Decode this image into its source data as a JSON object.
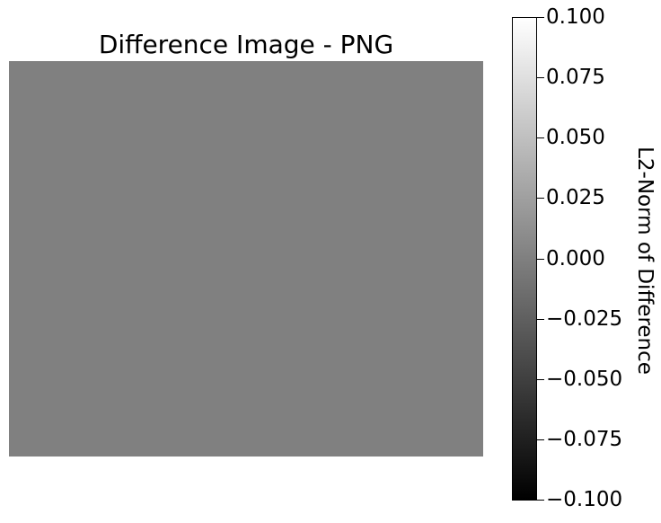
{
  "chart_data": {
    "type": "heatmap",
    "title": "Difference Image - PNG",
    "values": [
      [
        0.0
      ]
    ],
    "colormap": [
      "#000000",
      "#ffffff"
    ],
    "colorbar": {
      "label": "L2-Norm of Difference",
      "range": [
        -0.1,
        0.1
      ],
      "ticks": [
        0.1,
        0.075,
        0.05,
        0.025,
        0.0,
        -0.025,
        -0.05,
        -0.075,
        -0.1
      ],
      "tick_labels": [
        "0.100",
        "0.075",
        "0.050",
        "0.025",
        "0.000",
        "−0.025",
        "−0.050",
        "−0.075",
        "−0.100"
      ]
    },
    "grid": false,
    "axes_visible": false
  }
}
